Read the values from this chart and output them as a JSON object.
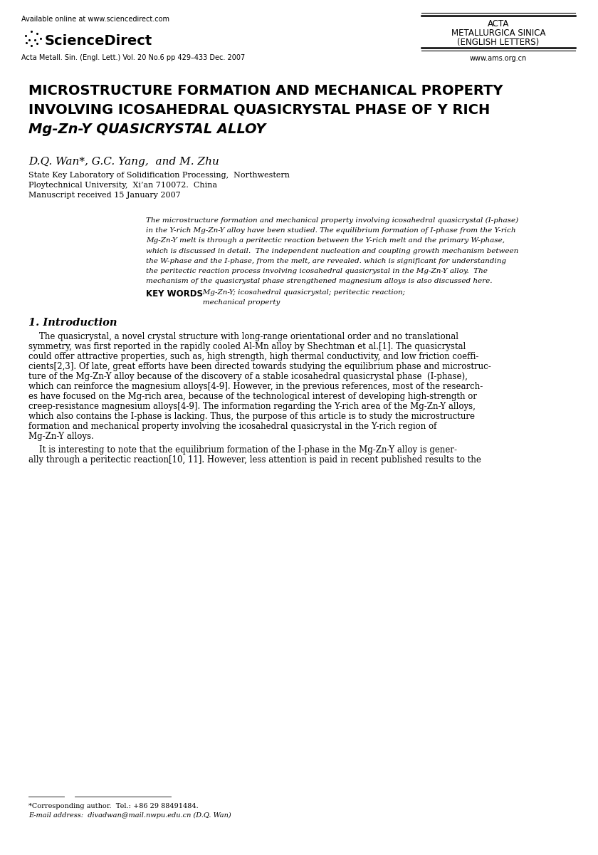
{
  "bg_color": "#ffffff",
  "header_left_line1": "Available online at www.sciencedirect.com",
  "header_right_box_lines": [
    "ACTA",
    "METALLURGICA SINICA",
    "(ENGLISH LETTERS)"
  ],
  "header_right_url": "www.ams.org.cn",
  "journal_info": "Acta Metall. Sin. (Engl. Lett.) Vol. 20 No.6 pp 429–433 Dec. 2007",
  "title_line1": "MICROSTRUCTURE FORMATION AND MECHANICAL PROPERTY",
  "title_line2": "INVOLVING ICOSAHEDRAL QUASICRYSTAL PHASE OF Y RICH",
  "title_line3": "Mg-Zn-Y QUASICRYSTAL ALLOY",
  "authors": "D.Q. Wan*, G.C. Yang,  and M. Zhu",
  "affil1": "State Key Laboratory of Solidification Processing,  Northwestern",
  "affil2": "Ploytechnical University,  Xi’an 710072.  China",
  "affil3": "Manuscript received 15 January 2007",
  "abstract_lines": [
    "The microstructure formation and mechanical property involving icosahedral quasicrystal (I-phase)",
    "in the Y-rich Mg-Zn-Y alloy have been studied. The equilibrium formation of I-phase from the Y-rich",
    "Mg-Zn-Y melt is through a peritectic reaction between the Y-rich melt and the primary W-phase,",
    "which is discussed in detail.  The independent nucleation and coupling growth mechanism between",
    "the W-phase and the I-phase, from the melt, are revealed. which is significant for understanding",
    "the peritectic reaction process involving icosahedral quasicrystal in the Mg-Zn-Y alloy.  The",
    "mechanism of the quasicrystal phase strengthened magnesium alloys is also discussed here."
  ],
  "kw_label": "KEY WORDS",
  "kw_line1": "   Mg-Zn-Y; icosahedral quasicrystal; peritectic reaction;",
  "kw_line2": "   mechanical property",
  "section1_title": "1. Introduction",
  "intro_p1_lines": [
    "    The quasicrystal, a novel crystal structure with long-range orientational order and no translational",
    "symmetry, was first reported in the rapidly cooled Al-Mn alloy by Shechtman et al.[1]. The quasicrystal",
    "could offer attractive properties, such as, high strength, high thermal conductivity, and low friction coeffi-",
    "cients[2,3]. Of late, great efforts have been directed towards studying the equilibrium phase and microstruc-",
    "ture of the Mg-Zn-Y alloy because of the discovery of a stable icosahedral quasicrystal phase  (I-phase),",
    "which can reinforce the magnesium alloys[4-9]. However, in the previous references, most of the research-",
    "es have focused on the Mg-rich area, because of the technological interest of developing high-strength or",
    "creep-resistance magnesium alloys[4-9]. The information regarding the Y-rich area of the Mg-Zn-Y alloys,",
    "which also contains the I-phase is lacking. Thus, the purpose of this article is to study the microstructure",
    "formation and mechanical property involving the icosahedral quasicrystal in the Y-rich region of",
    "Mg-Zn-Y alloys."
  ],
  "intro_p2_lines": [
    "    It is interesting to note that the equilibrium formation of the I-phase in the Mg-Zn-Y alloy is gener-",
    "ally through a peritectic reaction[10, 11]. However, less attention is paid in recent published results to the"
  ],
  "footnote_line1": "*Corresponding author.  Tel.: +86 29 88491484.",
  "footnote_line2": "E-mail address:  divadwan@mail.nwpu.edu.cn (D.Q. Wan)"
}
